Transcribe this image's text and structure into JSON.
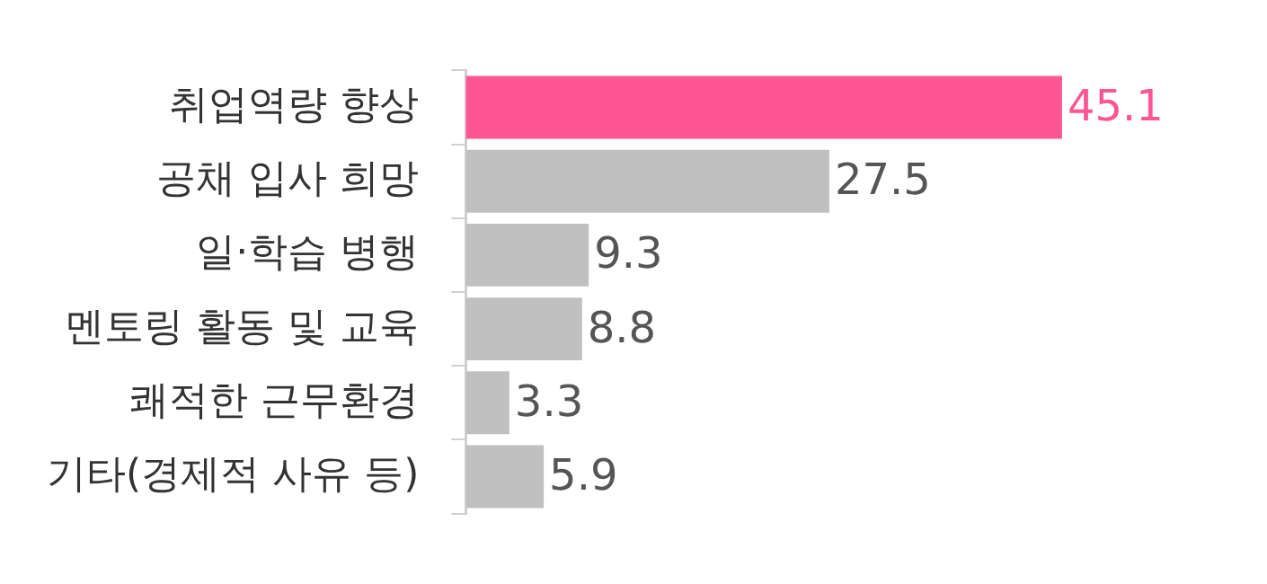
{
  "chart_data": {
    "type": "bar",
    "orientation": "horizontal",
    "categories": [
      "취업역량 향상",
      "공채 입사 희망",
      "일·학습 병행",
      "멘토링 활동 및 교육",
      "쾌적한 근무환경",
      "기타(경제적 사유 등)"
    ],
    "values": [
      45.1,
      27.5,
      9.3,
      8.8,
      3.3,
      5.9
    ],
    "colors": [
      "#ff5592",
      "#c0c0c0",
      "#c0c0c0",
      "#c0c0c0",
      "#c0c0c0",
      "#c0c0c0"
    ],
    "data_labels": true,
    "tick_labels": "y"
  }
}
